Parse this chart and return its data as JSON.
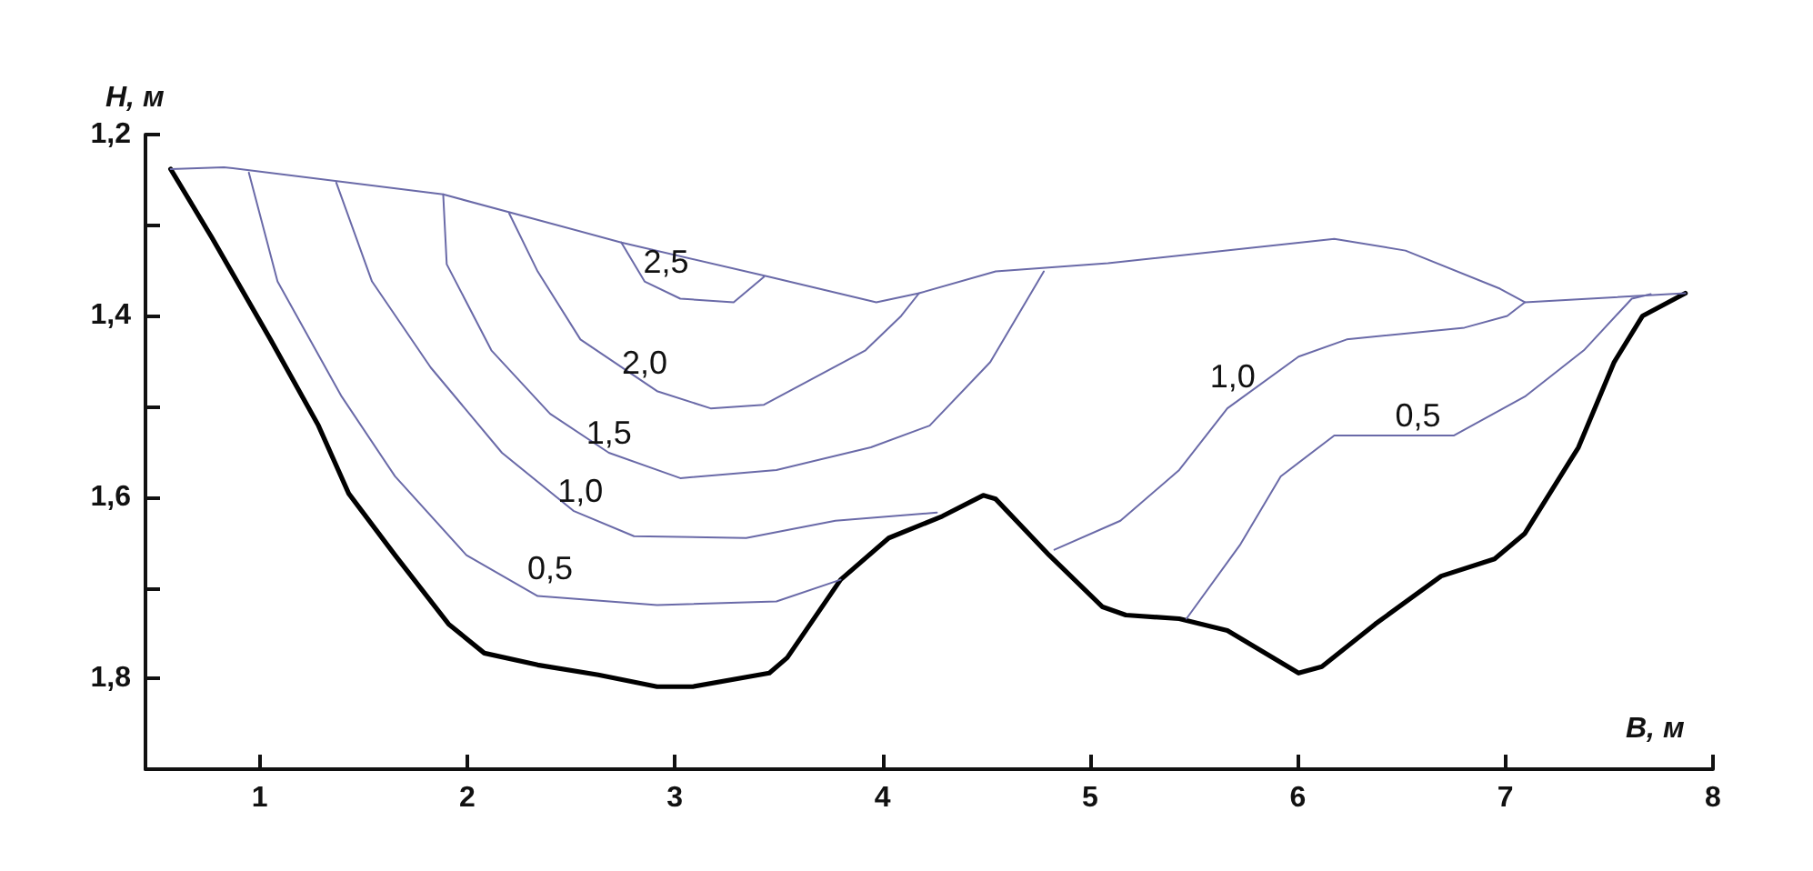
{
  "chart_data": {
    "type": "line",
    "xlabel": "B, м",
    "ylabel": "H, м",
    "xlim": [
      0.45,
      8
    ],
    "xticks": [
      1,
      2,
      3,
      4,
      5,
      6,
      7,
      8
    ],
    "ylim": [
      1.9,
      1.2
    ],
    "yticks": [
      {
        "value": 1.2,
        "label": "1,2"
      },
      {
        "value": 1.3,
        "label": null
      },
      {
        "value": 1.4,
        "label": "1,4"
      },
      {
        "value": 1.5,
        "label": null
      },
      {
        "value": 1.6,
        "label": "1,6"
      },
      {
        "value": 1.7,
        "label": null
      },
      {
        "value": 1.8,
        "label": "1,8"
      }
    ],
    "grid": false,
    "marker": "none",
    "line_style": "solid",
    "series": [
      {
        "color": "#000000",
        "x": [
          0.571,
          0.768,
          1.052,
          1.283,
          1.429,
          1.652,
          1.91,
          2.082,
          2.339,
          2.631,
          2.914,
          3.086,
          3.455,
          3.541,
          3.798,
          4.03,
          4.288,
          4.485,
          4.545,
          4.803,
          5.06,
          5.172,
          5.429,
          5.661,
          6.004,
          6.116,
          6.373,
          6.691,
          6.948,
          7.094,
          7.352,
          7.524,
          7.661,
          7.867
        ],
        "values": [
          1.238,
          1.313,
          1.426,
          1.521,
          1.596,
          1.664,
          1.74,
          1.772,
          1.785,
          1.796,
          1.809,
          1.809,
          1.794,
          1.777,
          1.691,
          1.645,
          1.621,
          1.598,
          1.602,
          1.664,
          1.721,
          1.73,
          1.734,
          1.747,
          1.794,
          1.787,
          1.74,
          1.687,
          1.668,
          1.64,
          1.545,
          1.451,
          1.4,
          1.375
        ]
      },
      {
        "color": "#6a6aa8",
        "x": [
          0.571,
          0.828,
          1.884,
          2.742,
          3.455,
          3.97,
          4.176,
          4.545,
          5.086,
          6.176,
          6.519,
          6.974,
          7.094,
          7.867
        ],
        "values": [
          1.238,
          1.236,
          1.266,
          1.319,
          1.357,
          1.385,
          1.375,
          1.351,
          1.342,
          1.315,
          1.328,
          1.37,
          1.385,
          1.375
        ]
      },
      {
        "color": "#6a6aa8",
        "x": [
          0.948,
          1.086,
          1.395,
          1.652,
          1.996,
          2.339,
          2.914,
          3.489,
          3.798
        ],
        "values": [
          1.242,
          1.362,
          1.489,
          1.577,
          1.664,
          1.709,
          1.719,
          1.715,
          1.691
        ]
      },
      {
        "color": "#6a6aa8",
        "x": [
          1.369,
          1.541,
          1.824,
          2.167,
          2.511,
          2.803,
          3.343,
          3.773,
          4.262
        ],
        "values": [
          1.253,
          1.362,
          1.457,
          1.551,
          1.615,
          1.643,
          1.645,
          1.626,
          1.617
        ]
      },
      {
        "color": "#6a6aa8",
        "x": [
          1.884,
          1.901,
          2.116,
          2.399,
          2.682,
          3.026,
          3.489,
          3.944,
          4.227,
          4.519,
          4.777
        ],
        "values": [
          1.266,
          1.343,
          1.438,
          1.508,
          1.551,
          1.579,
          1.57,
          1.545,
          1.521,
          1.451,
          1.351
        ]
      },
      {
        "color": "#6a6aa8",
        "x": [
          2.202,
          2.339,
          2.545,
          2.914,
          3.172,
          3.429,
          3.918,
          4.09,
          4.176
        ],
        "values": [
          1.287,
          1.351,
          1.426,
          1.483,
          1.502,
          1.498,
          1.438,
          1.4,
          1.375
        ]
      },
      {
        "color": "#6a6aa8",
        "x": [
          2.742,
          2.854,
          3.026,
          3.283,
          3.429
        ],
        "values": [
          1.319,
          1.362,
          1.381,
          1.385,
          1.357
        ]
      },
      {
        "color": "#6a6aa8",
        "x": [
          4.828,
          5.146,
          5.429,
          5.661,
          6.004,
          6.236,
          6.803,
          7.009,
          7.094
        ],
        "values": [
          1.658,
          1.626,
          1.57,
          1.502,
          1.445,
          1.426,
          1.413,
          1.4,
          1.385
        ]
      },
      {
        "color": "#6a6aa8",
        "x": [
          5.464,
          5.721,
          5.918,
          6.176,
          6.408,
          6.751,
          7.094,
          7.378,
          7.609,
          7.7
        ],
        "values": [
          1.734,
          1.653,
          1.577,
          1.532,
          1.532,
          1.532,
          1.489,
          1.438,
          1.381,
          1.376
        ]
      }
    ],
    "annotations": [
      {
        "text": "2,5",
        "x": 2.957,
        "y": 1.362
      },
      {
        "text": "2,0",
        "x": 2.854,
        "y": 1.474
      },
      {
        "text": "1,5",
        "x": 2.682,
        "y": 1.551
      },
      {
        "text": "1,0",
        "x": 2.545,
        "y": 1.615
      },
      {
        "text": "0,5",
        "x": 2.399,
        "y": 1.7
      },
      {
        "text": "1,0",
        "x": 5.687,
        "y": 1.489
      },
      {
        "text": "0,5",
        "x": 6.579,
        "y": 1.532
      }
    ]
  }
}
